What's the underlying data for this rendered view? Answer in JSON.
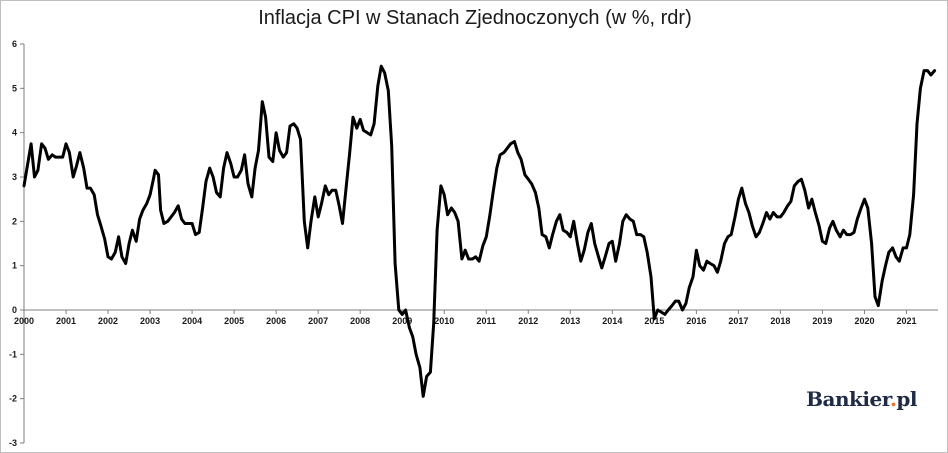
{
  "chart_data": {
    "type": "line",
    "title": "Inflacja CPI w Stanach Zjednoczonych (w %, rdr)",
    "xlabel": "",
    "ylabel": "",
    "ylim": [
      -3,
      6
    ],
    "yticks": [
      6,
      5,
      4,
      3,
      2,
      1,
      0,
      -1,
      -2,
      -3
    ],
    "xlim": [
      2000,
      2021.75
    ],
    "xticks": [
      "2000",
      "2001",
      "2002",
      "2003",
      "2004",
      "2005",
      "2006",
      "2007",
      "2008",
      "2009",
      "2010",
      "2011",
      "2012",
      "2013",
      "2014",
      "2015",
      "2016",
      "2017",
      "2018",
      "2019",
      "2020",
      "2021"
    ],
    "grid": false,
    "legend": "none",
    "line_color": "#000000",
    "series": [
      {
        "values": [
          [
            2000.0,
            2.8
          ],
          [
            2000.17,
            3.75
          ],
          [
            2000.25,
            3.0
          ],
          [
            2000.33,
            3.15
          ],
          [
            2000.42,
            3.75
          ],
          [
            2000.5,
            3.65
          ],
          [
            2000.58,
            3.4
          ],
          [
            2000.67,
            3.5
          ],
          [
            2000.75,
            3.45
          ],
          [
            2000.92,
            3.45
          ],
          [
            2001.0,
            3.75
          ],
          [
            2001.08,
            3.55
          ],
          [
            2001.17,
            3.0
          ],
          [
            2001.25,
            3.25
          ],
          [
            2001.33,
            3.55
          ],
          [
            2001.42,
            3.2
          ],
          [
            2001.5,
            2.75
          ],
          [
            2001.58,
            2.75
          ],
          [
            2001.67,
            2.6
          ],
          [
            2001.75,
            2.15
          ],
          [
            2001.83,
            1.9
          ],
          [
            2001.92,
            1.6
          ],
          [
            2002.0,
            1.2
          ],
          [
            2002.08,
            1.15
          ],
          [
            2002.17,
            1.3
          ],
          [
            2002.25,
            1.65
          ],
          [
            2002.33,
            1.2
          ],
          [
            2002.42,
            1.05
          ],
          [
            2002.5,
            1.5
          ],
          [
            2002.58,
            1.8
          ],
          [
            2002.67,
            1.55
          ],
          [
            2002.75,
            2.05
          ],
          [
            2002.83,
            2.25
          ],
          [
            2002.92,
            2.4
          ],
          [
            2003.0,
            2.6
          ],
          [
            2003.08,
            2.95
          ],
          [
            2003.12,
            3.15
          ],
          [
            2003.2,
            3.05
          ],
          [
            2003.25,
            2.25
          ],
          [
            2003.33,
            1.95
          ],
          [
            2003.42,
            2.0
          ],
          [
            2003.5,
            2.1
          ],
          [
            2003.58,
            2.2
          ],
          [
            2003.67,
            2.35
          ],
          [
            2003.75,
            2.05
          ],
          [
            2003.83,
            1.95
          ],
          [
            2004.0,
            1.95
          ],
          [
            2004.08,
            1.7
          ],
          [
            2004.17,
            1.75
          ],
          [
            2004.25,
            2.3
          ],
          [
            2004.33,
            2.9
          ],
          [
            2004.42,
            3.2
          ],
          [
            2004.5,
            3.0
          ],
          [
            2004.58,
            2.65
          ],
          [
            2004.67,
            2.55
          ],
          [
            2004.75,
            3.2
          ],
          [
            2004.83,
            3.55
          ],
          [
            2004.92,
            3.3
          ],
          [
            2005.0,
            3.0
          ],
          [
            2005.08,
            3.0
          ],
          [
            2005.17,
            3.15
          ],
          [
            2005.25,
            3.5
          ],
          [
            2005.33,
            2.85
          ],
          [
            2005.42,
            2.55
          ],
          [
            2005.5,
            3.2
          ],
          [
            2005.58,
            3.6
          ],
          [
            2005.67,
            4.7
          ],
          [
            2005.75,
            4.35
          ],
          [
            2005.83,
            3.45
          ],
          [
            2005.92,
            3.35
          ],
          [
            2006.0,
            4.0
          ],
          [
            2006.08,
            3.6
          ],
          [
            2006.17,
            3.45
          ],
          [
            2006.25,
            3.55
          ],
          [
            2006.33,
            4.15
          ],
          [
            2006.42,
            4.2
          ],
          [
            2006.5,
            4.1
          ],
          [
            2006.58,
            3.85
          ],
          [
            2006.67,
            2.0
          ],
          [
            2006.75,
            1.4
          ],
          [
            2006.83,
            2.0
          ],
          [
            2006.92,
            2.55
          ],
          [
            2007.0,
            2.1
          ],
          [
            2007.08,
            2.4
          ],
          [
            2007.17,
            2.8
          ],
          [
            2007.25,
            2.6
          ],
          [
            2007.33,
            2.7
          ],
          [
            2007.42,
            2.7
          ],
          [
            2007.5,
            2.35
          ],
          [
            2007.58,
            1.95
          ],
          [
            2007.67,
            2.8
          ],
          [
            2007.75,
            3.55
          ],
          [
            2007.83,
            4.35
          ],
          [
            2007.92,
            4.1
          ],
          [
            2008.0,
            4.3
          ],
          [
            2008.08,
            4.05
          ],
          [
            2008.17,
            4.0
          ],
          [
            2008.25,
            3.95
          ],
          [
            2008.33,
            4.2
          ],
          [
            2008.42,
            5.05
          ],
          [
            2008.5,
            5.5
          ],
          [
            2008.58,
            5.35
          ],
          [
            2008.67,
            4.95
          ],
          [
            2008.75,
            3.7
          ],
          [
            2008.83,
            1.05
          ],
          [
            2008.92,
            0.0
          ],
          [
            2009.0,
            -0.1
          ],
          [
            2009.08,
            0.0
          ],
          [
            2009.17,
            -0.4
          ],
          [
            2009.25,
            -0.6
          ],
          [
            2009.33,
            -1.0
          ],
          [
            2009.42,
            -1.3
          ],
          [
            2009.5,
            -1.95
          ],
          [
            2009.58,
            -1.5
          ],
          [
            2009.67,
            -1.4
          ],
          [
            2009.75,
            -0.3
          ],
          [
            2009.83,
            1.8
          ],
          [
            2009.92,
            2.8
          ],
          [
            2010.0,
            2.6
          ],
          [
            2010.08,
            2.15
          ],
          [
            2010.17,
            2.3
          ],
          [
            2010.25,
            2.2
          ],
          [
            2010.33,
            2.0
          ],
          [
            2010.42,
            1.15
          ],
          [
            2010.5,
            1.35
          ],
          [
            2010.58,
            1.15
          ],
          [
            2010.67,
            1.15
          ],
          [
            2010.75,
            1.2
          ],
          [
            2010.83,
            1.1
          ],
          [
            2010.92,
            1.45
          ],
          [
            2011.0,
            1.65
          ],
          [
            2011.08,
            2.1
          ],
          [
            2011.17,
            2.7
          ],
          [
            2011.25,
            3.2
          ],
          [
            2011.33,
            3.5
          ],
          [
            2011.42,
            3.55
          ],
          [
            2011.5,
            3.65
          ],
          [
            2011.58,
            3.75
          ],
          [
            2011.67,
            3.8
          ],
          [
            2011.75,
            3.55
          ],
          [
            2011.83,
            3.4
          ],
          [
            2011.92,
            3.05
          ],
          [
            2012.0,
            2.95
          ],
          [
            2012.08,
            2.85
          ],
          [
            2012.17,
            2.65
          ],
          [
            2012.25,
            2.3
          ],
          [
            2012.33,
            1.7
          ],
          [
            2012.42,
            1.65
          ],
          [
            2012.5,
            1.4
          ],
          [
            2012.58,
            1.7
          ],
          [
            2012.67,
            2.0
          ],
          [
            2012.75,
            2.15
          ],
          [
            2012.83,
            1.8
          ],
          [
            2012.92,
            1.75
          ],
          [
            2013.0,
            1.65
          ],
          [
            2013.08,
            2.0
          ],
          [
            2013.17,
            1.5
          ],
          [
            2013.25,
            1.1
          ],
          [
            2013.33,
            1.35
          ],
          [
            2013.42,
            1.75
          ],
          [
            2013.5,
            1.95
          ],
          [
            2013.58,
            1.5
          ],
          [
            2013.67,
            1.2
          ],
          [
            2013.75,
            0.95
          ],
          [
            2013.83,
            1.2
          ],
          [
            2013.92,
            1.5
          ],
          [
            2014.0,
            1.55
          ],
          [
            2014.08,
            1.1
          ],
          [
            2014.17,
            1.5
          ],
          [
            2014.25,
            2.0
          ],
          [
            2014.33,
            2.15
          ],
          [
            2014.42,
            2.05
          ],
          [
            2014.5,
            2.0
          ],
          [
            2014.58,
            1.7
          ],
          [
            2014.67,
            1.7
          ],
          [
            2014.75,
            1.65
          ],
          [
            2014.83,
            1.3
          ],
          [
            2014.92,
            0.75
          ],
          [
            2015.0,
            -0.2
          ],
          [
            2015.08,
            0.0
          ],
          [
            2015.17,
            -0.05
          ],
          [
            2015.25,
            -0.1
          ],
          [
            2015.33,
            0.0
          ],
          [
            2015.42,
            0.1
          ],
          [
            2015.5,
            0.2
          ],
          [
            2015.58,
            0.2
          ],
          [
            2015.67,
            0.0
          ],
          [
            2015.75,
            0.15
          ],
          [
            2015.83,
            0.5
          ],
          [
            2015.92,
            0.75
          ],
          [
            2016.0,
            1.35
          ],
          [
            2016.08,
            1.0
          ],
          [
            2016.17,
            0.9
          ],
          [
            2016.25,
            1.1
          ],
          [
            2016.33,
            1.05
          ],
          [
            2016.42,
            1.0
          ],
          [
            2016.5,
            0.85
          ],
          [
            2016.58,
            1.1
          ],
          [
            2016.67,
            1.5
          ],
          [
            2016.75,
            1.65
          ],
          [
            2016.83,
            1.7
          ],
          [
            2016.92,
            2.1
          ],
          [
            2017.0,
            2.5
          ],
          [
            2017.08,
            2.75
          ],
          [
            2017.17,
            2.4
          ],
          [
            2017.25,
            2.2
          ],
          [
            2017.33,
            1.9
          ],
          [
            2017.42,
            1.65
          ],
          [
            2017.5,
            1.75
          ],
          [
            2017.58,
            1.95
          ],
          [
            2017.67,
            2.2
          ],
          [
            2017.75,
            2.05
          ],
          [
            2017.83,
            2.2
          ],
          [
            2017.92,
            2.1
          ],
          [
            2018.0,
            2.1
          ],
          [
            2018.08,
            2.2
          ],
          [
            2018.17,
            2.35
          ],
          [
            2018.25,
            2.45
          ],
          [
            2018.33,
            2.8
          ],
          [
            2018.42,
            2.9
          ],
          [
            2018.5,
            2.95
          ],
          [
            2018.58,
            2.7
          ],
          [
            2018.67,
            2.3
          ],
          [
            2018.75,
            2.5
          ],
          [
            2018.83,
            2.2
          ],
          [
            2018.92,
            1.9
          ],
          [
            2019.0,
            1.55
          ],
          [
            2019.08,
            1.5
          ],
          [
            2019.17,
            1.85
          ],
          [
            2019.25,
            2.0
          ],
          [
            2019.33,
            1.8
          ],
          [
            2019.42,
            1.65
          ],
          [
            2019.5,
            1.8
          ],
          [
            2019.58,
            1.7
          ],
          [
            2019.67,
            1.7
          ],
          [
            2019.75,
            1.75
          ],
          [
            2019.83,
            2.05
          ],
          [
            2019.92,
            2.3
          ],
          [
            2020.0,
            2.5
          ],
          [
            2020.08,
            2.3
          ],
          [
            2020.17,
            1.5
          ],
          [
            2020.25,
            0.3
          ],
          [
            2020.33,
            0.1
          ],
          [
            2020.42,
            0.65
          ],
          [
            2020.5,
            1.0
          ],
          [
            2020.58,
            1.3
          ],
          [
            2020.67,
            1.4
          ],
          [
            2020.75,
            1.2
          ],
          [
            2020.83,
            1.1
          ],
          [
            2020.92,
            1.4
          ],
          [
            2021.0,
            1.4
          ],
          [
            2021.08,
            1.7
          ],
          [
            2021.17,
            2.6
          ],
          [
            2021.25,
            4.2
          ],
          [
            2021.33,
            5.0
          ],
          [
            2021.42,
            5.4
          ],
          [
            2021.5,
            5.4
          ],
          [
            2021.58,
            5.3
          ],
          [
            2021.67,
            5.4
          ]
        ]
      }
    ]
  },
  "branding": {
    "logo_text": "Bankier",
    "logo_dot": ".",
    "logo_suffix": "pl",
    "dot_color": "#e8742b"
  }
}
